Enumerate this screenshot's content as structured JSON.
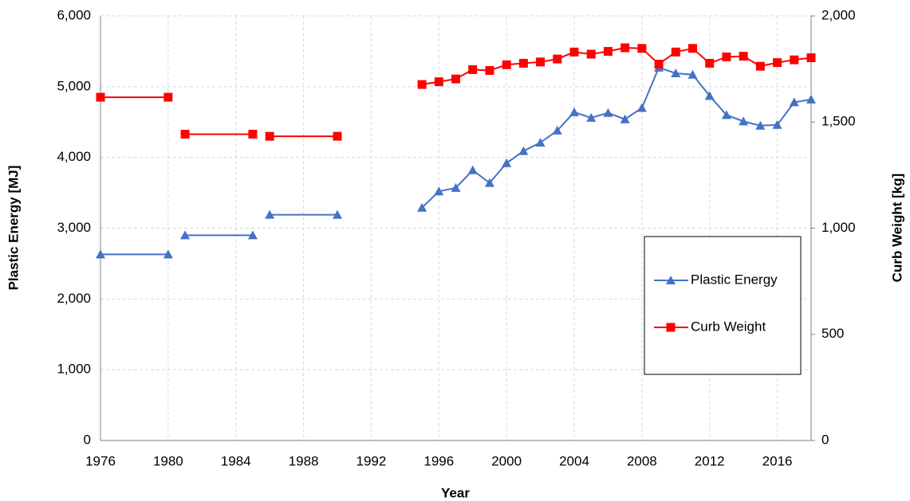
{
  "chart_data": {
    "type": "line",
    "x_label": "Year",
    "y_label": "Plastic Energy [MJ]",
    "y2_label": "Curb Weight [kg]",
    "x": [
      1976,
      1980,
      null,
      1981,
      1985,
      null,
      1986,
      1990,
      null,
      1995,
      1996,
      1997,
      1998,
      1999,
      2000,
      2001,
      2002,
      2003,
      2004,
      2005,
      2006,
      2007,
      2008,
      2009,
      2010,
      2011,
      2012,
      2013,
      2014,
      2015,
      2016,
      2017,
      2018
    ],
    "series": [
      {
        "name": "Plastic Energy",
        "color": "#4472c4",
        "marker": "triangle",
        "values": [
          2630,
          2630,
          null,
          2900,
          2900,
          null,
          3190,
          3190,
          null,
          3290,
          3520,
          3570,
          3820,
          3640,
          3920,
          4090,
          4210,
          4380,
          4640,
          4560,
          4630,
          4540,
          4700,
          5270,
          5190,
          5170,
          4870,
          4600,
          4510,
          4450,
          4460,
          4780,
          4820
        ]
      },
      {
        "name": "Curb Weight",
        "color": "#ff0000",
        "marker": "square",
        "axis": "y2",
        "values": [
          1617,
          1617,
          null,
          1443,
          1443,
          null,
          1433,
          1433,
          null,
          1677,
          1690,
          1703,
          1747,
          1743,
          1770,
          1777,
          1783,
          1797,
          1830,
          1820,
          1833,
          1850,
          1847,
          1773,
          1830,
          1847,
          1777,
          1807,
          1810,
          1763,
          1780,
          1793,
          1803
        ]
      }
    ],
    "xlim": [
      1976,
      2018
    ],
    "xticks": [
      1976,
      1980,
      1984,
      1988,
      1992,
      1996,
      2000,
      2004,
      2008,
      2012,
      2016
    ],
    "ylim": [
      0,
      6000
    ],
    "yticks": [
      0,
      {
        "value": 1000,
        "label": "1,000"
      },
      {
        "value": 2000,
        "label": "2,000"
      },
      {
        "value": 3000,
        "label": "3,000"
      },
      {
        "value": 4000,
        "label": "4,000"
      },
      {
        "value": 5000,
        "label": "5,000"
      },
      {
        "value": 6000,
        "label": "6,000"
      }
    ],
    "y2lim": [
      0,
      2000
    ],
    "y2ticks": [
      0,
      500,
      {
        "value": 1000,
        "label": "1,000"
      },
      {
        "value": 1500,
        "label": "1,500"
      },
      {
        "value": 2000,
        "label": "2,000"
      }
    ],
    "grid": true,
    "legend": "lower right"
  }
}
